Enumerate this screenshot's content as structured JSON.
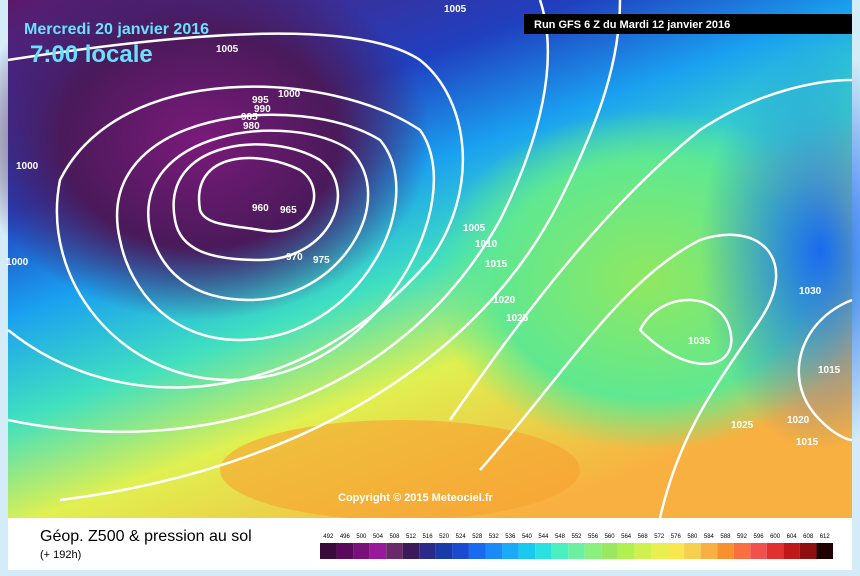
{
  "header": {
    "date": "Mercredi 20 janvier 2016",
    "time": "7:00 locale",
    "run": "Run GFS 6 Z du Mardi 12 janvier 2016"
  },
  "isobar_labels": [
    "1005",
    "1005",
    "1000",
    "995",
    "990",
    "985",
    "980",
    "1000",
    "960",
    "965",
    "970",
    "975",
    "1000",
    "1005",
    "1010",
    "1015",
    "1020",
    "1025",
    "1030",
    "1035",
    "1015",
    "1025",
    "1020",
    "1015"
  ],
  "copyright": "Copyright © 2015 Meteociel.fr",
  "legend": {
    "title": "Géop. Z500 & pression au sol",
    "subtitle": "(+ 192h)",
    "labels": [
      492,
      496,
      500,
      504,
      508,
      512,
      516,
      520,
      524,
      528,
      532,
      536,
      540,
      544,
      548,
      552,
      556,
      560,
      564,
      568,
      572,
      576,
      580,
      584,
      588,
      592,
      596,
      600,
      604,
      608,
      612
    ],
    "colors": [
      "#3a0a3a",
      "#5a0a5a",
      "#7a107a",
      "#9a189a",
      "#6a2a6a",
      "#3a1a5a",
      "#2a2a8a",
      "#1a3aaa",
      "#1a4ad0",
      "#1a6af0",
      "#1a8af8",
      "#1aaaf8",
      "#1ac8f0",
      "#2ae0e0",
      "#4af0c0",
      "#6af0a0",
      "#8af080",
      "#9ae860",
      "#b0f050",
      "#d0f050",
      "#e8f050",
      "#f8e850",
      "#f8d050",
      "#f8b040",
      "#f89030",
      "#f87040",
      "#f05050",
      "#e03030",
      "#c01818",
      "#901010",
      "#200000"
    ]
  }
}
